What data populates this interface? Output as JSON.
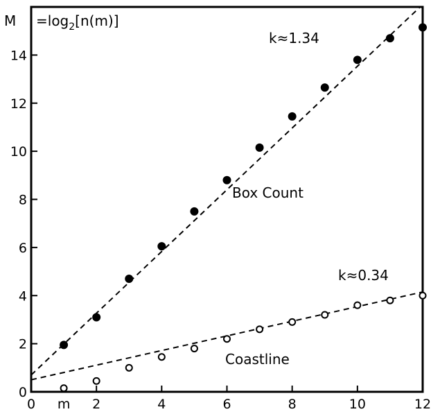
{
  "chart_data": {
    "type": "scatter",
    "ylabel_prefix": "M",
    "ylabel_eq": "=log",
    "ylabel_sub": "2",
    "ylabel_rest": "[n(m)]",
    "xlabel_inline": "m",
    "xlim": [
      0,
      12
    ],
    "ylim": [
      0,
      16
    ],
    "x_ticks": [
      "0",
      "2",
      "4",
      "6",
      "8",
      "10",
      "12"
    ],
    "y_ticks": [
      "0",
      "2",
      "4",
      "6",
      "8",
      "10",
      "12",
      "14"
    ],
    "grid": false,
    "series": [
      {
        "marker": "filled-circle",
        "x": [
          1,
          2,
          3,
          4,
          5,
          6,
          7,
          8,
          9,
          10,
          11,
          12
        ],
        "y": [
          1.95,
          3.1,
          4.7,
          6.05,
          7.5,
          8.8,
          10.15,
          11.45,
          12.65,
          13.8,
          14.7,
          15.15
        ],
        "fit": {
          "x": [
            0,
            12
          ],
          "y": [
            0.7,
            16.1
          ]
        },
        "slope_label": "k≈1.34",
        "curve_label": "Box Count"
      },
      {
        "marker": "open-circle",
        "x": [
          1,
          2,
          3,
          4,
          5,
          6,
          7,
          8,
          9,
          10,
          11,
          12
        ],
        "y": [
          0.15,
          0.45,
          1.0,
          1.45,
          1.8,
          2.2,
          2.6,
          2.9,
          3.2,
          3.6,
          3.8,
          4.0
        ],
        "fit": {
          "x": [
            0,
            12
          ],
          "y": [
            0.5,
            4.15
          ]
        },
        "slope_label": "k≈0.34",
        "curve_label": "Coastline"
      }
    ]
  }
}
